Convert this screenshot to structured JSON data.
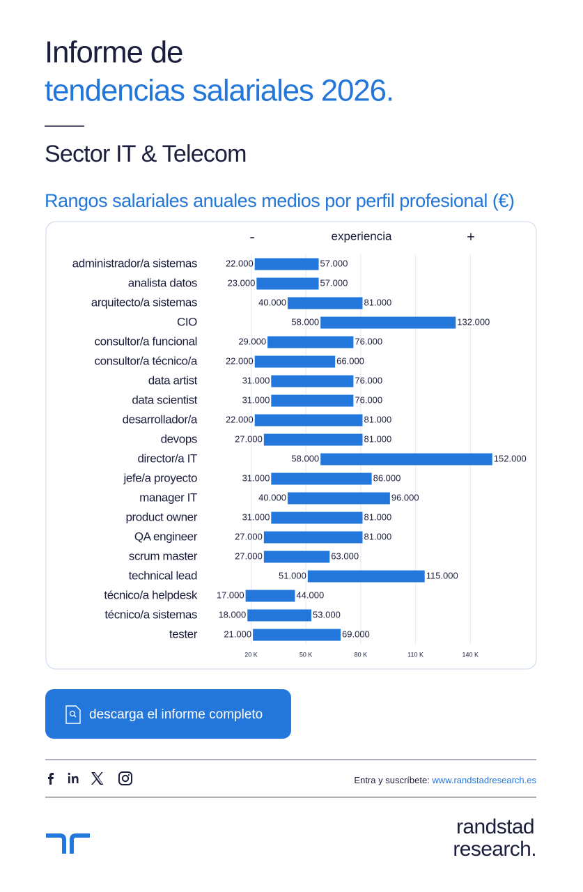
{
  "header": {
    "title_line1": "Informe de",
    "title_line2": "tendencias salariales 2026.",
    "subtitle": "Sector IT & Telecom"
  },
  "chart_data": {
    "type": "bar",
    "horizontal": true,
    "title": "Rangos salariales anuales medios por perfil profesional (€)",
    "axis_header": {
      "left": "-",
      "label": "experiencia",
      "right": "+"
    },
    "categories": [
      "administrador/a sistemas",
      "analista datos",
      "arquitecto/a sistemas",
      "CIO",
      "consultor/a funcional",
      "consultor/a técnico/a",
      "data artist",
      "data scientist",
      "desarrollador/a",
      "devops",
      "director/a IT",
      "jefe/a proyecto",
      "manager IT",
      "product owner",
      "QA engineer",
      "scrum master",
      "technical lead",
      "técnico/a helpdesk",
      "técnico/a sistemas",
      "tester"
    ],
    "values": [
      [
        22000,
        57000
      ],
      [
        23000,
        57000
      ],
      [
        40000,
        81000
      ],
      [
        58000,
        132000
      ],
      [
        29000,
        76000
      ],
      [
        22000,
        66000
      ],
      [
        31000,
        76000
      ],
      [
        31000,
        76000
      ],
      [
        22000,
        81000
      ],
      [
        27000,
        81000
      ],
      [
        58000,
        152000
      ],
      [
        31000,
        86000
      ],
      [
        40000,
        96000
      ],
      [
        31000,
        81000
      ],
      [
        27000,
        81000
      ],
      [
        27000,
        63000
      ],
      [
        51000,
        115000
      ],
      [
        17000,
        44000
      ],
      [
        18000,
        53000
      ],
      [
        21000,
        69000
      ]
    ],
    "value_labels": [
      [
        "22.000",
        "57.000"
      ],
      [
        "23.000",
        "57.000"
      ],
      [
        "40.000",
        "81.000"
      ],
      [
        "58.000",
        "132.000"
      ],
      [
        "29.000",
        "76.000"
      ],
      [
        "22.000",
        "66.000"
      ],
      [
        "31.000",
        "76.000"
      ],
      [
        "31.000",
        "76.000"
      ],
      [
        "22.000",
        "81.000"
      ],
      [
        "27.000",
        "81.000"
      ],
      [
        "58.000",
        "152.000"
      ],
      [
        "31.000",
        "86.000"
      ],
      [
        "40.000",
        "96.000"
      ],
      [
        "31.000",
        "81.000"
      ],
      [
        "27.000",
        "81.000"
      ],
      [
        "27.000",
        "63.000"
      ],
      [
        "51.000",
        "115.000"
      ],
      [
        "17.000",
        "44.000"
      ],
      [
        "18.000",
        "53.000"
      ],
      [
        "21.000",
        "69.000"
      ]
    ],
    "color": "#2376da",
    "xlim": [
      0,
      170000
    ],
    "xticks": [
      {
        "value": 20000,
        "label": "20 K"
      },
      {
        "value": 50000,
        "label": "50 K"
      },
      {
        "value": 80000,
        "label": "80 K"
      },
      {
        "value": 110000,
        "label": "110 K"
      },
      {
        "value": 140000,
        "label": "140 K"
      }
    ],
    "grid": true
  },
  "button": {
    "label": "descarga el informe completo"
  },
  "footer": {
    "subscribe": "Entra y suscríbete: ",
    "link": "www.randstadresearch.es",
    "brand_line1": "randstad",
    "brand_line2": "research."
  }
}
